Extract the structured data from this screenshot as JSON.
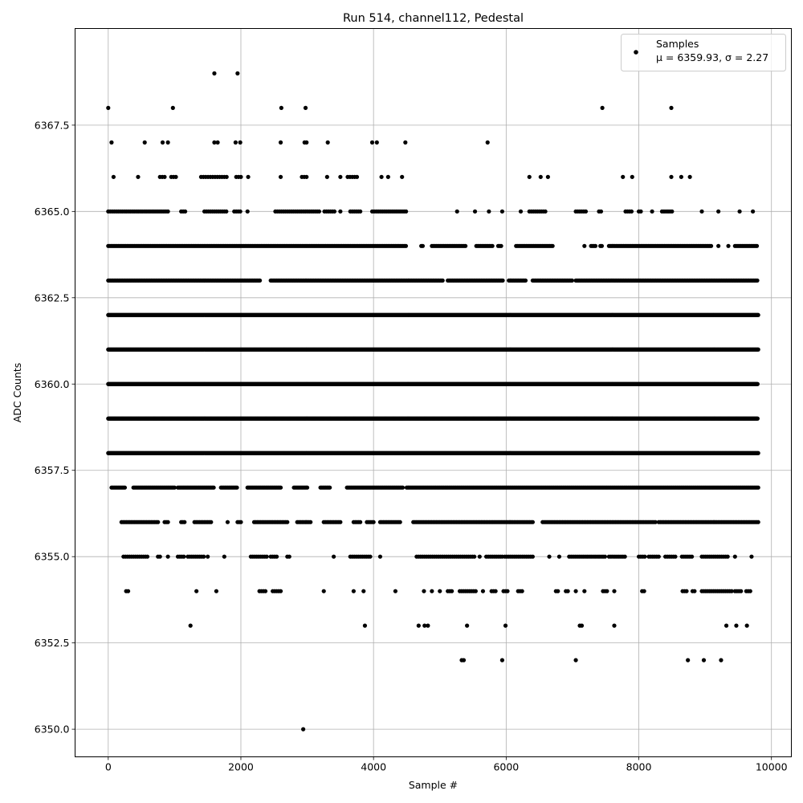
{
  "chart_data": {
    "type": "scatter",
    "title": "Run 514, channel112, Pedestal",
    "xlabel": "Sample #",
    "ylabel": "ADC Counts",
    "xlim": [
      -500,
      10300
    ],
    "ylim": [
      6349.2,
      6370.3
    ],
    "x_ticks": [
      0,
      2000,
      4000,
      6000,
      8000,
      10000
    ],
    "y_ticks": [
      6350.0,
      6352.5,
      6355.0,
      6357.5,
      6360.0,
      6362.5,
      6365.0,
      6367.5
    ],
    "x_tick_labels": [
      "0",
      "2000",
      "4000",
      "6000",
      "8000",
      "10000"
    ],
    "y_tick_labels": [
      "6350.0",
      "6352.5",
      "6355.0",
      "6357.5",
      "6360.0",
      "6362.5",
      "6365.0",
      "6367.5"
    ],
    "grid": true,
    "legend_position": "top-right",
    "marker_color": "#000000",
    "series": [
      {
        "name": "Samples",
        "stats_label": "μ = 6359.93, σ = 2.27",
        "points": [
          [
            0,
            6368
          ],
          [
            975,
            6368
          ],
          [
            2610,
            6368
          ],
          [
            2975,
            6368
          ],
          [
            7450,
            6368
          ],
          [
            8490,
            6368
          ],
          [
            1600,
            6369
          ],
          [
            1950,
            6369
          ],
          [
            50,
            6367
          ],
          [
            550,
            6367
          ],
          [
            820,
            6367
          ],
          [
            900,
            6367
          ],
          [
            1600,
            6367
          ],
          [
            1650,
            6367
          ],
          [
            1920,
            6367
          ],
          [
            1990,
            6367
          ],
          [
            2600,
            6367
          ],
          [
            2960,
            6367
          ],
          [
            2990,
            6367
          ],
          [
            3310,
            6367
          ],
          [
            3980,
            6367
          ],
          [
            4050,
            6367
          ],
          [
            4480,
            6367
          ],
          [
            5720,
            6367
          ],
          [
            2940,
            6350
          ],
          [
            5330,
            6352
          ],
          [
            5360,
            6352
          ],
          [
            5940,
            6352
          ],
          [
            7050,
            6352
          ],
          [
            8740,
            6352
          ],
          [
            8980,
            6352
          ],
          [
            9240,
            6352
          ],
          [
            1240,
            6353
          ],
          [
            3870,
            6353
          ],
          [
            4680,
            6353
          ],
          [
            4770,
            6353
          ],
          [
            4820,
            6353
          ],
          [
            5410,
            6353
          ],
          [
            5990,
            6353
          ],
          [
            7110,
            6353
          ],
          [
            7140,
            6353
          ],
          [
            7630,
            6353
          ],
          [
            9320,
            6353
          ],
          [
            9470,
            6353
          ],
          [
            9630,
            6353
          ]
        ],
        "bands": [
          {
            "y": 6366,
            "ranges": [
              [
                80,
                110
              ],
              [
                450,
                450
              ],
              [
                780,
                850
              ],
              [
                950,
                1020
              ],
              [
                1400,
                1800
              ],
              [
                1930,
                2020
              ],
              [
                2110,
                2110
              ],
              [
                2600,
                2600
              ],
              [
                2920,
                3020
              ],
              [
                3300,
                3300
              ],
              [
                3500,
                3500
              ],
              [
                3610,
                3750
              ],
              [
                4120,
                4120
              ],
              [
                4220,
                4220
              ],
              [
                4430,
                4430
              ],
              [
                6350,
                6350
              ],
              [
                6520,
                6520
              ],
              [
                6630,
                6630
              ],
              [
                7760,
                7760
              ],
              [
                7900,
                7900
              ],
              [
                8490,
                8490
              ],
              [
                8640,
                8640
              ],
              [
                8770,
                8770
              ]
            ],
            "step": 35
          },
          {
            "y": 6365,
            "ranges": [
              [
                0,
                900
              ],
              [
                1100,
                1170
              ],
              [
                1450,
                1800
              ],
              [
                1900,
                1990
              ],
              [
                2100,
                2100
              ],
              [
                2520,
                3200
              ],
              [
                3260,
                3430
              ],
              [
                3500,
                3500
              ],
              [
                3650,
                3800
              ],
              [
                3980,
                4500
              ],
              [
                5260,
                5260
              ],
              [
                5530,
                5530
              ],
              [
                5740,
                5740
              ],
              [
                5940,
                5940
              ],
              [
                6220,
                6220
              ],
              [
                6350,
                6600
              ],
              [
                7050,
                7200
              ],
              [
                7400,
                7440
              ],
              [
                7800,
                7900
              ],
              [
                8000,
                8050
              ],
              [
                8200,
                8200
              ],
              [
                8350,
                8500
              ],
              [
                8950,
                8950
              ],
              [
                9200,
                9200
              ],
              [
                9520,
                9520
              ],
              [
                9720,
                9720
              ]
            ],
            "step": 30
          },
          {
            "y": 6364,
            "ranges": [
              [
                0,
                4500
              ],
              [
                4720,
                4760
              ],
              [
                4880,
                5400
              ],
              [
                5550,
                5800
              ],
              [
                5880,
                5940
              ],
              [
                6150,
                6720
              ],
              [
                7180,
                7180
              ],
              [
                7280,
                7350
              ],
              [
                7420,
                7450
              ],
              [
                7550,
                9100
              ],
              [
                9200,
                9200
              ],
              [
                9350,
                9350
              ],
              [
                9450,
                9800
              ]
            ],
            "step": 22
          },
          {
            "y": 6363,
            "ranges": [
              [
                0,
                2300
              ],
              [
                2450,
                5050
              ],
              [
                5120,
                5950
              ],
              [
                6040,
                6300
              ],
              [
                6400,
                7000
              ],
              [
                7050,
                9800
              ]
            ],
            "step": 18
          },
          {
            "y": 6362,
            "ranges": [
              [
                0,
                9800
              ]
            ],
            "step": 14
          },
          {
            "y": 6361,
            "ranges": [
              [
                0,
                9800
              ]
            ],
            "step": 14
          },
          {
            "y": 6360,
            "ranges": [
              [
                0,
                9800
              ]
            ],
            "step": 11
          },
          {
            "y": 6359,
            "ranges": [
              [
                0,
                9800
              ]
            ],
            "step": 11
          },
          {
            "y": 6358,
            "ranges": [
              [
                0,
                9800
              ]
            ],
            "step": 14
          },
          {
            "y": 6357,
            "ranges": [
              [
                50,
                250
              ],
              [
                380,
                1000
              ],
              [
                1050,
                1600
              ],
              [
                1700,
                1950
              ],
              [
                2100,
                2600
              ],
              [
                2800,
                3000
              ],
              [
                3200,
                3350
              ],
              [
                3600,
                4450
              ],
              [
                4500,
                9800
              ]
            ],
            "step": 20
          },
          {
            "y": 6356,
            "ranges": [
              [
                200,
                750
              ],
              [
                850,
                900
              ],
              [
                1100,
                1150
              ],
              [
                1300,
                1550
              ],
              [
                1800,
                1800
              ],
              [
                1950,
                2000
              ],
              [
                2200,
                2700
              ],
              [
                2850,
                3050
              ],
              [
                3250,
                3500
              ],
              [
                3700,
                3800
              ],
              [
                3900,
                4000
              ],
              [
                4100,
                4400
              ],
              [
                4600,
                6400
              ],
              [
                6550,
                8250
              ],
              [
                8300,
                9800
              ]
            ],
            "step": 25
          },
          {
            "y": 6355,
            "ranges": [
              [
                230,
                530
              ],
              [
                560,
                600
              ],
              [
                750,
                800
              ],
              [
                900,
                900
              ],
              [
                1050,
                1150
              ],
              [
                1200,
                1450
              ],
              [
                1500,
                1500
              ],
              [
                1750,
                1750
              ],
              [
                2150,
                2400
              ],
              [
                2450,
                2550
              ],
              [
                2700,
                2750
              ],
              [
                3400,
                3400
              ],
              [
                3650,
                3950
              ],
              [
                4100,
                4100
              ],
              [
                4650,
                5520
              ],
              [
                5600,
                5620
              ],
              [
                5700,
                5950
              ],
              [
                5980,
                6400
              ],
              [
                6650,
                6650
              ],
              [
                6800,
                6800
              ],
              [
                6950,
                7500
              ],
              [
                7550,
                7800
              ],
              [
                8000,
                8100
              ],
              [
                8150,
                8300
              ],
              [
                8400,
                8550
              ],
              [
                8650,
                8800
              ],
              [
                8950,
                9350
              ],
              [
                9450,
                9450
              ],
              [
                9700,
                9700
              ]
            ],
            "step": 30
          },
          {
            "y": 6354,
            "ranges": [
              [
                270,
                320
              ],
              [
                1330,
                1330
              ],
              [
                1630,
                1630
              ],
              [
                2280,
                2380
              ],
              [
                2480,
                2600
              ],
              [
                3250,
                3250
              ],
              [
                3700,
                3700
              ],
              [
                3850,
                3850
              ],
              [
                4330,
                4330
              ],
              [
                4760,
                4760
              ],
              [
                4880,
                4880
              ],
              [
                5000,
                5000
              ],
              [
                5120,
                5200
              ],
              [
                5300,
                5550
              ],
              [
                5650,
                5650
              ],
              [
                5780,
                5850
              ],
              [
                5960,
                6030
              ],
              [
                6180,
                6260
              ],
              [
                6750,
                6800
              ],
              [
                6900,
                6950
              ],
              [
                7050,
                7050
              ],
              [
                7180,
                7180
              ],
              [
                7460,
                7520
              ],
              [
                7630,
                7630
              ],
              [
                8050,
                8100
              ],
              [
                8660,
                8730
              ],
              [
                8810,
                8840
              ],
              [
                8950,
                9400
              ],
              [
                9450,
                9560
              ],
              [
                9620,
                9680
              ]
            ],
            "step": 30
          }
        ]
      }
    ]
  }
}
